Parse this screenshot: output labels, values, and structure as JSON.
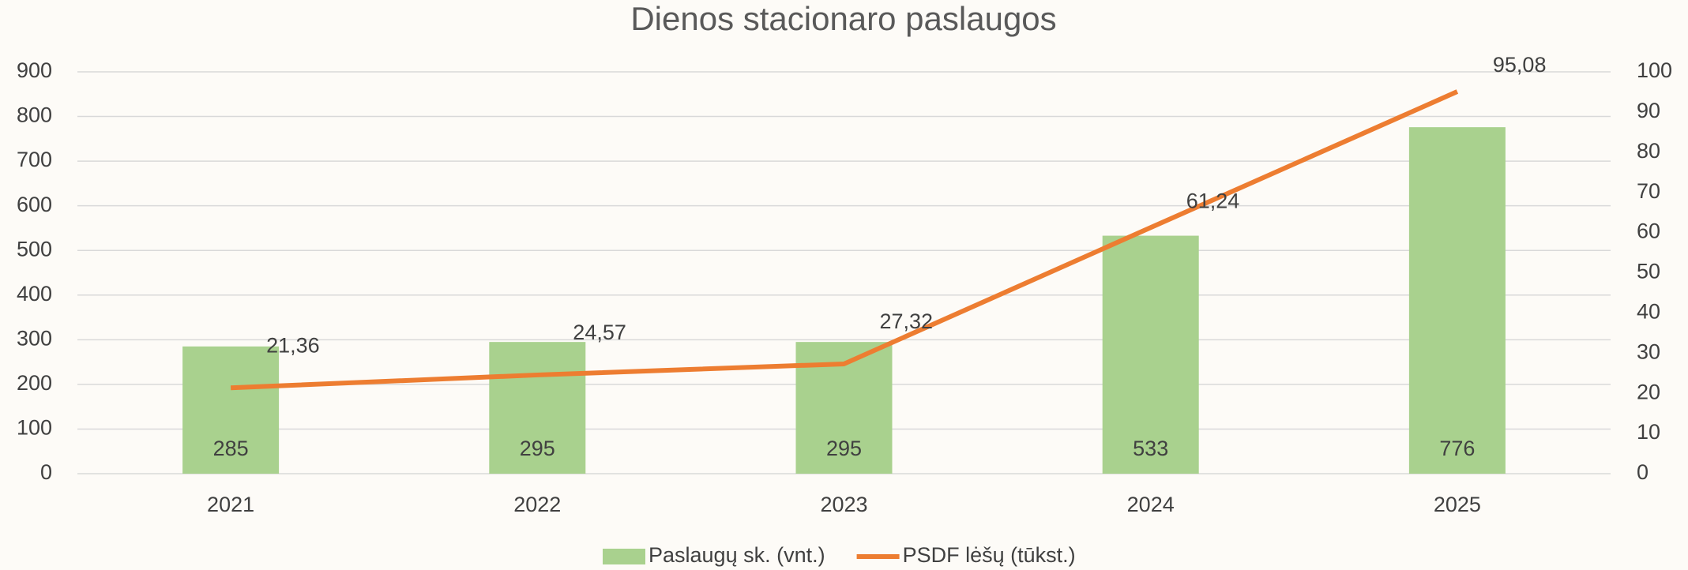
{
  "chart_data": {
    "type": "bar",
    "title": "Dienos stacionaro paslaugos",
    "categories": [
      "2021",
      "2022",
      "2023",
      "2024",
      "2025"
    ],
    "series": [
      {
        "name": "Paslaugų sk. (vnt.)",
        "type": "bar",
        "color": "#a9d18e",
        "values": [
          285,
          295,
          295,
          533,
          776
        ]
      },
      {
        "name": "PSDF lėšų (tūkst.)",
        "type": "line",
        "axis": "y2",
        "color": "#ed7d31",
        "values": [
          21.36,
          24.57,
          27.32,
          61.24,
          95.08
        ],
        "value_labels": [
          "21,36",
          "24,57",
          "27,32",
          "61,24",
          "95,08"
        ]
      }
    ],
    "ylim": [
      0,
      900
    ],
    "yticks": [
      0,
      100,
      200,
      300,
      400,
      500,
      600,
      700,
      800,
      900
    ],
    "y2lim": [
      0,
      100
    ],
    "y2ticks": [
      0,
      10,
      20,
      30,
      40,
      50,
      60,
      70,
      80,
      90,
      100
    ],
    "grid": true,
    "legend": "bottom"
  }
}
